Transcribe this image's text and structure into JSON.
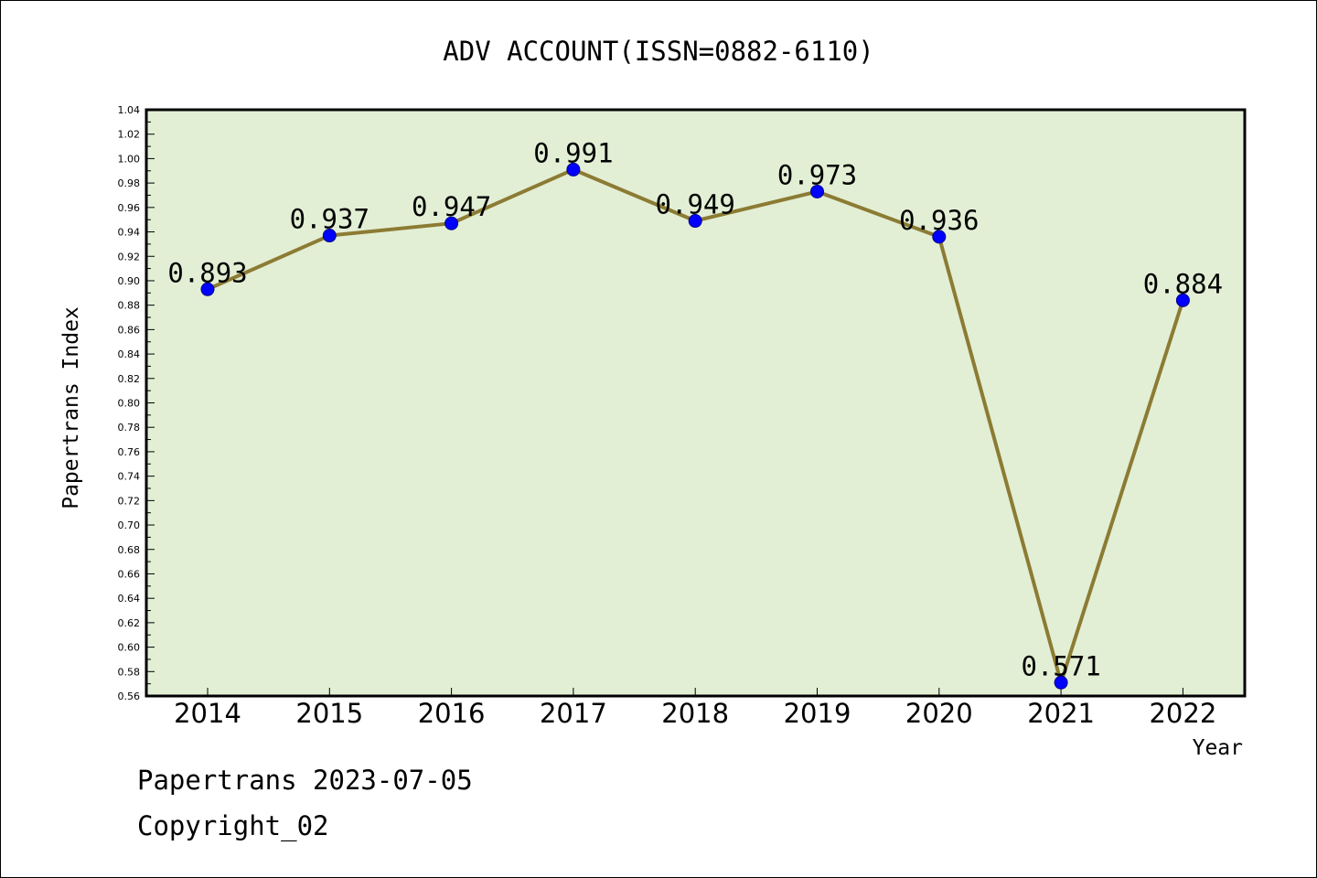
{
  "chart_data": {
    "type": "line",
    "title": "ADV ACCOUNT(ISSN=0882-6110)",
    "xlabel": "Year",
    "ylabel": "Papertrans Index",
    "categories": [
      "2014",
      "2015",
      "2016",
      "2017",
      "2018",
      "2019",
      "2020",
      "2021",
      "2022"
    ],
    "series": [
      {
        "values": [
          0.893,
          0.937,
          0.947,
          0.991,
          0.949,
          0.973,
          0.936,
          0.571,
          0.884
        ],
        "labels": [
          "0.893",
          "0.937",
          "0.947",
          "0.991",
          "0.949",
          "0.973",
          "0.936",
          "0.571",
          "0.884"
        ]
      }
    ],
    "ylim": [
      0.56,
      1.04
    ],
    "yticks": [
      "0.56",
      "0.58",
      "0.60",
      "0.62",
      "0.64",
      "0.66",
      "0.68",
      "0.70",
      "0.72",
      "0.74",
      "0.76",
      "0.78",
      "0.80",
      "0.82",
      "0.84",
      "0.86",
      "0.88",
      "0.90",
      "0.92",
      "0.94",
      "0.96",
      "0.98",
      "1.00",
      "1.02",
      "1.04"
    ],
    "grid": false,
    "colors": {
      "plot_background": "#e2efd5",
      "line": "#8c7b33",
      "marker": "#0000ff"
    }
  },
  "footer": {
    "line1": "Papertrans 2023-07-05",
    "line2": "Copyright_02"
  }
}
